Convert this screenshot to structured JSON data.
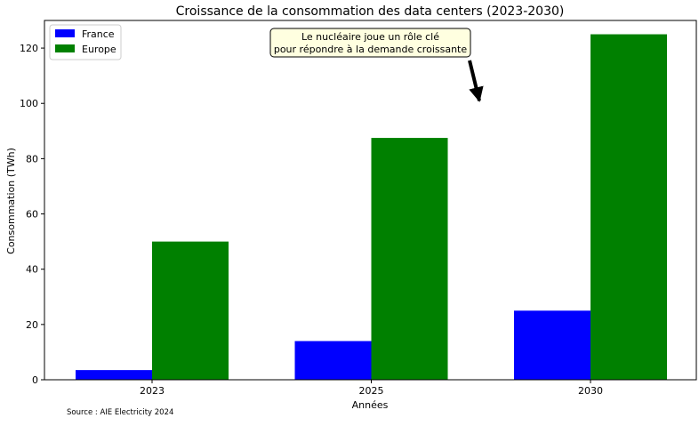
{
  "chart_data": {
    "type": "bar",
    "title": "Croissance de la consommation des data centers (2023-2030)",
    "xlabel": "Années",
    "ylabel": "Consommation (TWh)",
    "categories": [
      "2023",
      "2025",
      "2030"
    ],
    "series": [
      {
        "name": "France",
        "values": [
          3.5,
          14,
          25
        ],
        "color": "#0000ff"
      },
      {
        "name": "Europe",
        "values": [
          50,
          87.5,
          125
        ],
        "color": "#008000"
      }
    ],
    "ylim": [
      0,
      130
    ],
    "yticks": [
      0,
      20,
      40,
      60,
      80,
      100,
      120
    ],
    "legend_position": "top-left",
    "grid": false,
    "annotation": {
      "lines": [
        "Le nucléaire joue un rôle clé",
        "pour répondre à la demande croissante"
      ],
      "arrow_target": {
        "x": "between 2025 and 2030",
        "y": 100
      },
      "box_color": "#ffffe0"
    }
  },
  "source_note": "Source : AIE Electricity 2024"
}
